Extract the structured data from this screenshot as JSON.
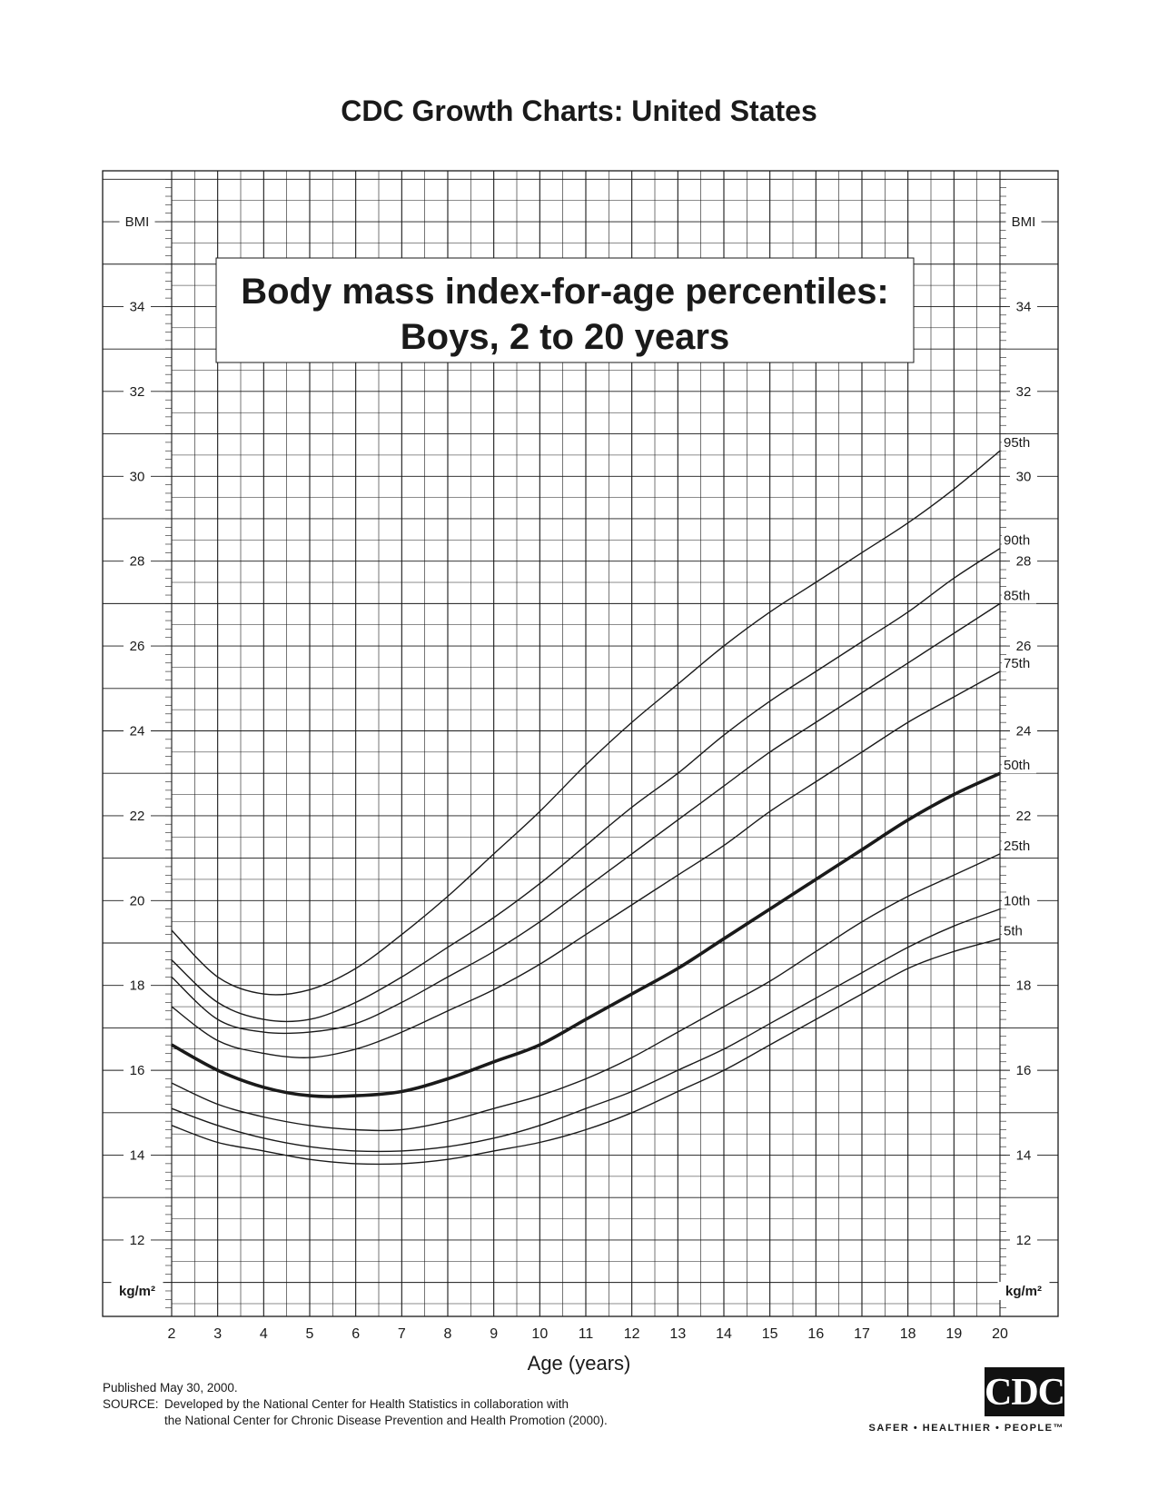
{
  "header": {
    "title": "CDC Growth Charts: United States"
  },
  "footer": {
    "published": "Published May 30, 2000.",
    "source_label": "SOURCE:",
    "source_line1": "Developed by the National Center for Health Statistics in collaboration with",
    "source_line2": "the National Center for Chronic Disease Prevention and Health Promotion (2000)."
  },
  "logo": {
    "text": "CDC",
    "tagline": "SAFER • HEALTHIER • PEOPLE™"
  },
  "chart_data": {
    "type": "line",
    "title": "Body mass index-for-age percentiles:",
    "subtitle": "Boys, 2 to 20 years",
    "xlabel": "Age (years)",
    "ylabel_top": "BMI",
    "ylabel_bottom": "kg/m²",
    "xlim": [
      2,
      20
    ],
    "ylim": [
      10.2,
      37.2
    ],
    "x_ticks": [
      2,
      3,
      4,
      5,
      6,
      7,
      8,
      9,
      10,
      11,
      12,
      13,
      14,
      15,
      16,
      17,
      18,
      19,
      20
    ],
    "y_ticks": [
      12,
      14,
      16,
      18,
      20,
      22,
      24,
      26,
      28,
      30,
      32,
      34
    ],
    "grid": true,
    "x": [
      2,
      3,
      4,
      5,
      6,
      7,
      8,
      9,
      10,
      11,
      12,
      13,
      14,
      15,
      16,
      17,
      18,
      19,
      20
    ],
    "series": [
      {
        "name": "95th",
        "values": [
          19.3,
          18.2,
          17.8,
          17.9,
          18.4,
          19.2,
          20.1,
          21.1,
          22.1,
          23.2,
          24.2,
          25.1,
          26.0,
          26.8,
          27.5,
          28.2,
          28.9,
          29.7,
          30.6
        ]
      },
      {
        "name": "90th",
        "values": [
          18.6,
          17.6,
          17.2,
          17.2,
          17.6,
          18.2,
          18.9,
          19.6,
          20.4,
          21.3,
          22.2,
          23.0,
          23.9,
          24.7,
          25.4,
          26.1,
          26.8,
          27.6,
          28.3
        ]
      },
      {
        "name": "85th",
        "values": [
          18.2,
          17.2,
          16.9,
          16.9,
          17.1,
          17.6,
          18.2,
          18.8,
          19.5,
          20.3,
          21.1,
          21.9,
          22.7,
          23.5,
          24.2,
          24.9,
          25.6,
          26.3,
          27.0
        ]
      },
      {
        "name": "75th",
        "values": [
          17.5,
          16.7,
          16.4,
          16.3,
          16.5,
          16.9,
          17.4,
          17.9,
          18.5,
          19.2,
          19.9,
          20.6,
          21.3,
          22.1,
          22.8,
          23.5,
          24.2,
          24.8,
          25.4
        ]
      },
      {
        "name": "50th",
        "values": [
          16.6,
          16.0,
          15.6,
          15.4,
          15.4,
          15.5,
          15.8,
          16.2,
          16.6,
          17.2,
          17.8,
          18.4,
          19.1,
          19.8,
          20.5,
          21.2,
          21.9,
          22.5,
          23.0
        ]
      },
      {
        "name": "25th",
        "values": [
          15.7,
          15.2,
          14.9,
          14.7,
          14.6,
          14.6,
          14.8,
          15.1,
          15.4,
          15.8,
          16.3,
          16.9,
          17.5,
          18.1,
          18.8,
          19.5,
          20.1,
          20.6,
          21.1
        ]
      },
      {
        "name": "10th",
        "values": [
          15.1,
          14.7,
          14.4,
          14.2,
          14.1,
          14.1,
          14.2,
          14.4,
          14.7,
          15.1,
          15.5,
          16.0,
          16.5,
          17.1,
          17.7,
          18.3,
          18.9,
          19.4,
          19.8
        ]
      },
      {
        "name": "5th",
        "values": [
          14.7,
          14.3,
          14.1,
          13.9,
          13.8,
          13.8,
          13.9,
          14.1,
          14.3,
          14.6,
          15.0,
          15.5,
          16.0,
          16.6,
          17.2,
          17.8,
          18.4,
          18.8,
          19.1
        ]
      }
    ]
  }
}
